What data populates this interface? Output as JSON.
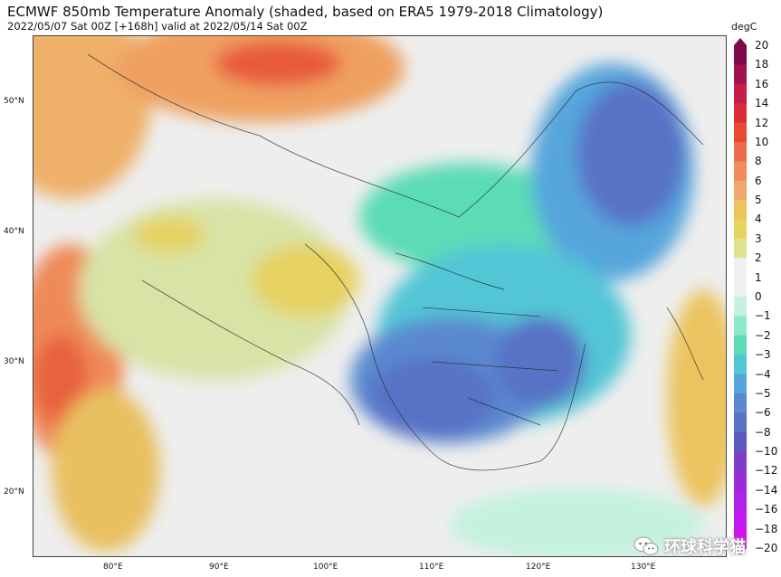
{
  "header": {
    "title": "ECMWF 850mb Temperature Anomaly (shaded, based on ERA5 1979-2018 Climatology)",
    "subtitle": "2022/05/07 Sat 00Z [+168h] valid at 2022/05/14 Sat 00Z"
  },
  "axes": {
    "lat_labels": [
      "50°N",
      "40°N",
      "30°N",
      "20°N"
    ],
    "lon_labels": [
      "80°E",
      "90°E",
      "100°E",
      "110°E",
      "120°E",
      "130°E"
    ]
  },
  "colorbar": {
    "unit": "degC",
    "ticks": [
      "20",
      "18",
      "16",
      "14",
      "12",
      "10",
      "8",
      "6",
      "5",
      "4",
      "3",
      "2",
      "1",
      "0",
      "−1",
      "−2",
      "−3",
      "−4",
      "−5",
      "−6",
      "−8",
      "−10",
      "−12",
      "−14",
      "−16",
      "−18",
      "−20"
    ],
    "colors": [
      "#7b0a48",
      "#a1104f",
      "#c51d48",
      "#dc2c35",
      "#e64a33",
      "#ec6b4c",
      "#f08c5a",
      "#f0a76a",
      "#ecc45e",
      "#e6d460",
      "#dfe28f",
      "#f0f0f0",
      "#f0f0f0",
      "#c4f2de",
      "#8ee9cc",
      "#5bdcb5",
      "#52c6d6",
      "#56a6dc",
      "#5a89d0",
      "#5872c6",
      "#5a5bbd",
      "#7a3ec8",
      "#9a2bd8",
      "#b022e4",
      "#c318ee",
      "#d40ff0"
    ]
  },
  "watermark": {
    "text": "环球科学猫",
    "icon": "wechat-icon"
  }
}
